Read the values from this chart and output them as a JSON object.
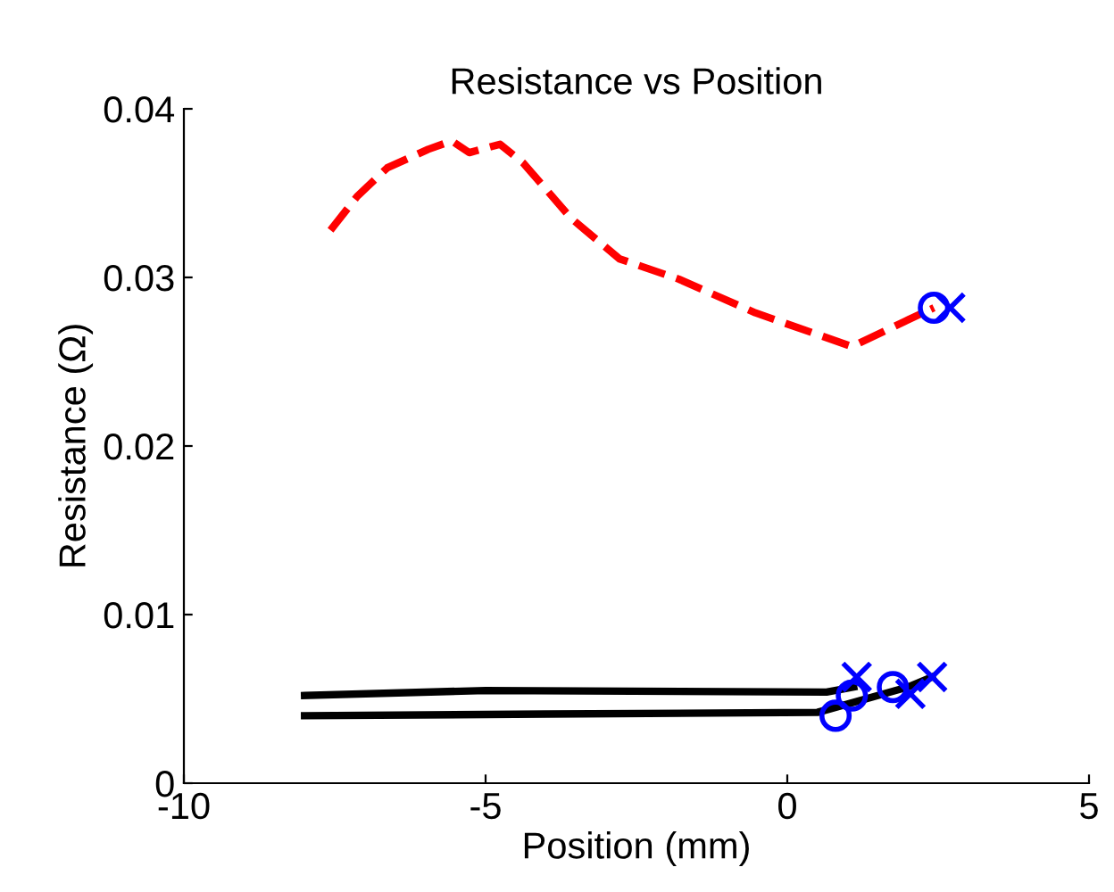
{
  "chart_data": {
    "type": "line",
    "title": "Resistance vs Position",
    "xlabel": "Position (mm)",
    "ylabel": "Resistance (Ω)",
    "xlim": [
      -10,
      5
    ],
    "xticks": [
      -10,
      -5,
      0,
      5
    ],
    "ylim": [
      0,
      0.04
    ],
    "yticks": [
      0,
      0.01,
      0.02,
      0.03,
      0.04
    ],
    "grid": false,
    "legend": false,
    "series": [
      {
        "color": "#ff0000",
        "line_style": "dashed",
        "marker": "none",
        "x": [
          -7.57,
          -7.13,
          -6.63,
          -5.95,
          -5.56,
          -5.27,
          -4.76,
          -4.38,
          -3.58,
          -2.78,
          -1.8,
          -0.53,
          1.07,
          1.95,
          2.43
        ],
        "values": [
          0.0328,
          0.0348,
          0.0365,
          0.0376,
          0.0381,
          0.0374,
          0.0379,
          0.0368,
          0.0335,
          0.0311,
          0.0299,
          0.0279,
          0.0259,
          0.0274,
          0.0282
        ]
      },
      {
        "color": "#000000",
        "line_style": "solid",
        "marker": "none",
        "x": [
          -8.0,
          -5.0,
          0.65,
          1.1
        ],
        "values": [
          0.0052,
          0.0055,
          0.0054,
          0.0057
        ]
      },
      {
        "color": "#000000",
        "line_style": "solid",
        "marker": "none",
        "x": [
          -8.0,
          -4.0,
          0.5,
          1.0,
          2.0,
          2.4
        ],
        "values": [
          0.004,
          0.0041,
          0.0042,
          0.0047,
          0.0057,
          0.0063
        ]
      },
      {
        "type": "scatter",
        "color": "#0000ff",
        "marker": "circle",
        "x": [
          2.43,
          0.8,
          1.07,
          1.75
        ],
        "values": [
          0.0282,
          0.004,
          0.0052,
          0.0057
        ]
      },
      {
        "type": "scatter",
        "color": "#0000ff",
        "marker": "cross",
        "x": [
          2.7,
          1.15,
          2.04,
          2.4
        ],
        "values": [
          0.0282,
          0.0063,
          0.0053,
          0.0063
        ]
      }
    ]
  }
}
